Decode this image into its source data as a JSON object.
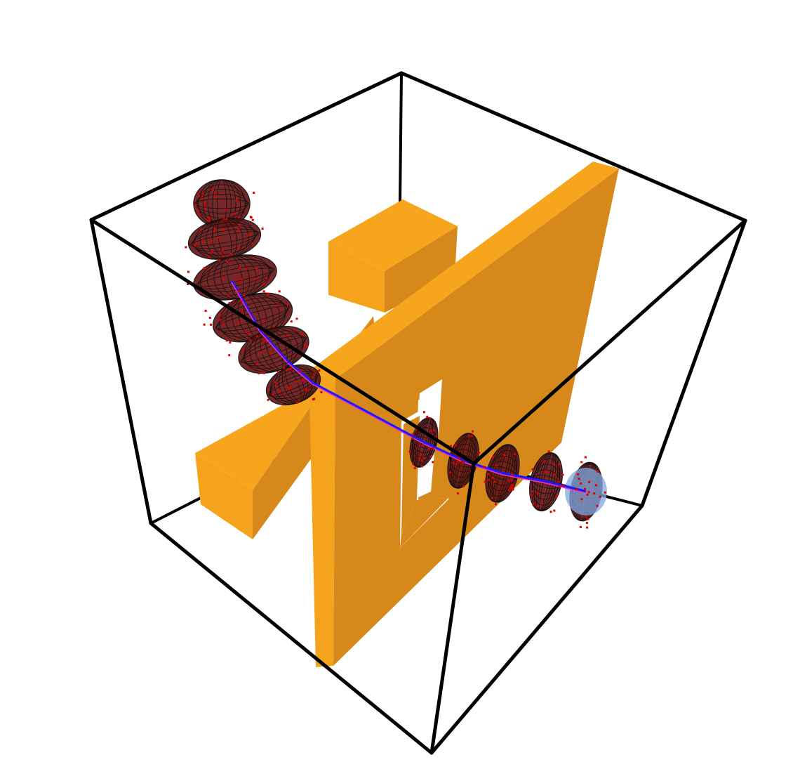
{
  "scene": {
    "background": "#ffffff",
    "colors": {
      "box_edge": "#000000",
      "obstacle_top": "#f6a51d",
      "obstacle_front": "#f5a31c",
      "obstacle_side": "#d6891a",
      "ellipsoid_fill": "#6b1515",
      "ellipsoid_mesh": "#111111",
      "sample_points": "#e00000",
      "path": "#1a1aff",
      "path_highlight": "#ff33aa",
      "goal_sphere": "#7fa8e0"
    },
    "ellipsoid_count_upper_path": 6,
    "ellipsoid_count_lower_path": 5
  }
}
